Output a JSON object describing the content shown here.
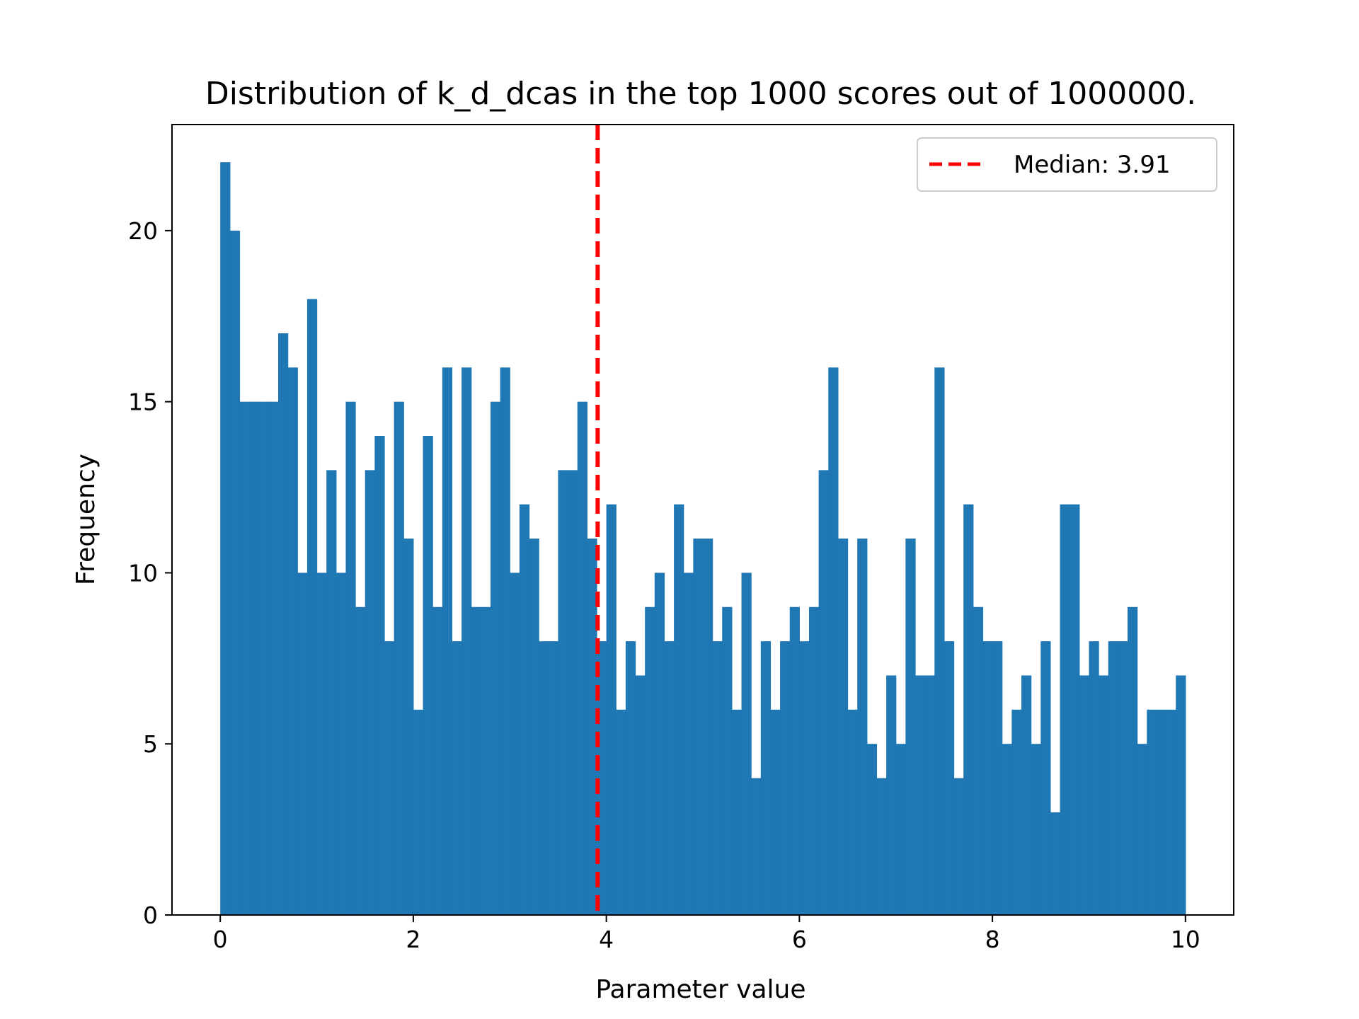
{
  "chart_data": {
    "type": "bar",
    "title": "Distribution of k_d_dcas in the top 1000 scores out of 1000000.",
    "xlabel": "Parameter value",
    "ylabel": "Frequency",
    "xlim": [
      -0.5,
      10.5
    ],
    "ylim": [
      0,
      23.1
    ],
    "xticks": [
      0,
      2,
      4,
      6,
      8,
      10
    ],
    "yticks": [
      0,
      5,
      10,
      15,
      20
    ],
    "bins": {
      "start": 0.0,
      "width": 0.1,
      "color": "#1f77b4",
      "counts": [
        22,
        20,
        15,
        15,
        15,
        15,
        17,
        16,
        10,
        18,
        10,
        13,
        10,
        15,
        9,
        13,
        14,
        8,
        15,
        11,
        6,
        14,
        9,
        16,
        8,
        16,
        9,
        9,
        15,
        16,
        10,
        12,
        11,
        8,
        8,
        13,
        13,
        15,
        11,
        8,
        12,
        6,
        8,
        7,
        9,
        10,
        8,
        12,
        10,
        11,
        11,
        8,
        9,
        6,
        10,
        4,
        8,
        6,
        8,
        9,
        8,
        9,
        13,
        16,
        11,
        6,
        11,
        5,
        4,
        7,
        5,
        11,
        7,
        7,
        16,
        8,
        4,
        12,
        9,
        8,
        8,
        5,
        6,
        7,
        5,
        8,
        3,
        12,
        12,
        7,
        8,
        7,
        8,
        8,
        9,
        5,
        6,
        6,
        6,
        7
      ]
    },
    "median": {
      "value": 3.91,
      "color": "#ff0000",
      "style": "dashed"
    },
    "legend": {
      "placement": "upper-right",
      "entries": [
        "Median: 3.91"
      ]
    },
    "grid": false
  }
}
